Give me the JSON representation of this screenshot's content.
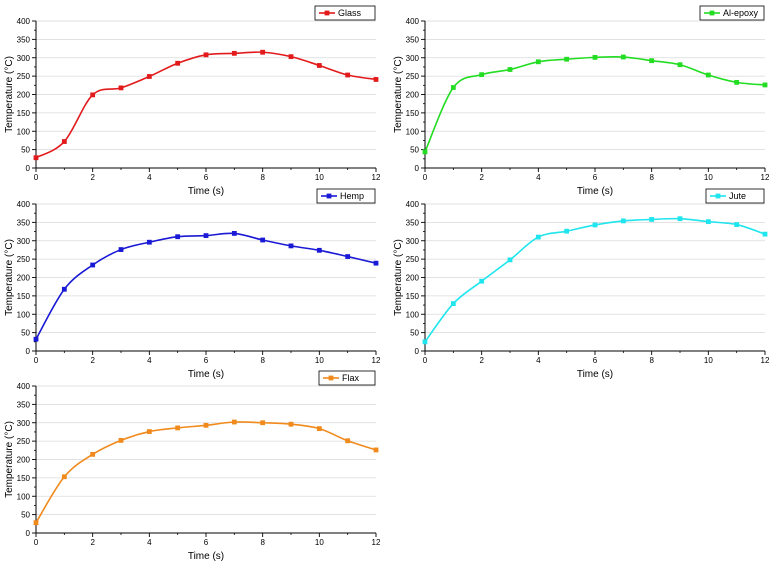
{
  "chart_data": [
    {
      "type": "line",
      "title": "",
      "xlabel": "Time (s)",
      "ylabel": "Temperature (°C)",
      "xlim": [
        0,
        12
      ],
      "ylim": [
        0,
        400
      ],
      "xticks": [
        "0",
        "2",
        "4",
        "6",
        "8",
        "10",
        "12"
      ],
      "yticks": [
        "0",
        "50",
        "100",
        "150",
        "200",
        "250",
        "300",
        "350",
        "400"
      ],
      "grid": true,
      "legend_position": "top-right",
      "series": [
        {
          "name": "Glass",
          "color": "#e31a1c",
          "marker": "square",
          "x": [
            0,
            1,
            2,
            3,
            4,
            5,
            6,
            7,
            8,
            9,
            10,
            11,
            12
          ],
          "y": [
            28,
            72,
            199,
            218,
            249,
            285,
            308,
            312,
            315,
            303,
            279,
            253,
            241
          ]
        }
      ]
    },
    {
      "type": "line",
      "title": "",
      "xlabel": "Time (s)",
      "ylabel": "Temperature (°C)",
      "xlim": [
        0,
        12
      ],
      "ylim": [
        0,
        400
      ],
      "xticks": [
        "0",
        "2",
        "4",
        "6",
        "8",
        "10",
        "12"
      ],
      "yticks": [
        "0",
        "50",
        "100",
        "150",
        "200",
        "250",
        "300",
        "350",
        "400"
      ],
      "grid": true,
      "legend_position": "top-right",
      "series": [
        {
          "name": "Al-epoxy",
          "color": "#22dd22",
          "marker": "square",
          "x": [
            0,
            1,
            2,
            3,
            4,
            5,
            6,
            7,
            8,
            9,
            10,
            11,
            12
          ],
          "y": [
            44,
            219,
            254,
            268,
            289,
            296,
            301,
            302,
            292,
            281,
            253,
            233,
            226
          ]
        }
      ]
    },
    {
      "type": "line",
      "title": "",
      "xlabel": "Time (s)",
      "ylabel": "Temperature (°C)",
      "xlim": [
        0,
        12
      ],
      "ylim": [
        0,
        400
      ],
      "xticks": [
        "0",
        "2",
        "4",
        "6",
        "8",
        "10",
        "12"
      ],
      "yticks": [
        "0",
        "50",
        "100",
        "150",
        "200",
        "250",
        "300",
        "350",
        "400"
      ],
      "grid": true,
      "legend_position": "top-right",
      "series": [
        {
          "name": "Hemp",
          "color": "#1a1ad6",
          "marker": "square",
          "x": [
            0,
            1,
            2,
            3,
            4,
            5,
            6,
            7,
            8,
            9,
            10,
            11,
            12
          ],
          "y": [
            32,
            168,
            234,
            276,
            296,
            311,
            314,
            320,
            302,
            286,
            274,
            257,
            239
          ]
        }
      ]
    },
    {
      "type": "line",
      "title": "",
      "xlabel": "Time (s)",
      "ylabel": "Temperature (°C)",
      "xlim": [
        0,
        12
      ],
      "ylim": [
        0,
        400
      ],
      "xticks": [
        "0",
        "2",
        "4",
        "6",
        "8",
        "10",
        "12"
      ],
      "yticks": [
        "0",
        "50",
        "100",
        "150",
        "200",
        "250",
        "300",
        "350",
        "400"
      ],
      "grid": true,
      "legend_position": "top-right",
      "series": [
        {
          "name": "Jute",
          "color": "#1ee5ee",
          "marker": "square",
          "x": [
            0,
            1,
            2,
            3,
            4,
            5,
            6,
            7,
            8,
            9,
            10,
            11,
            12
          ],
          "y": [
            25,
            129,
            190,
            248,
            310,
            326,
            343,
            354,
            358,
            360,
            352,
            344,
            318
          ]
        }
      ]
    },
    {
      "type": "line",
      "title": "",
      "xlabel": "Time (s)",
      "ylabel": "Temperature (°C)",
      "xlim": [
        0,
        12
      ],
      "ylim": [
        0,
        400
      ],
      "xticks": [
        "0",
        "2",
        "4",
        "6",
        "8",
        "10",
        "12"
      ],
      "yticks": [
        "0",
        "50",
        "100",
        "150",
        "200",
        "250",
        "300",
        "350",
        "400"
      ],
      "grid": true,
      "legend_position": "top-right",
      "series": [
        {
          "name": "Flax",
          "color": "#f08a1c",
          "marker": "square",
          "x": [
            0,
            1,
            2,
            3,
            4,
            5,
            6,
            7,
            8,
            9,
            10,
            11,
            12
          ],
          "y": [
            28,
            153,
            214,
            252,
            276,
            286,
            293,
            302,
            300,
            296,
            284,
            251,
            226
          ]
        }
      ]
    }
  ]
}
